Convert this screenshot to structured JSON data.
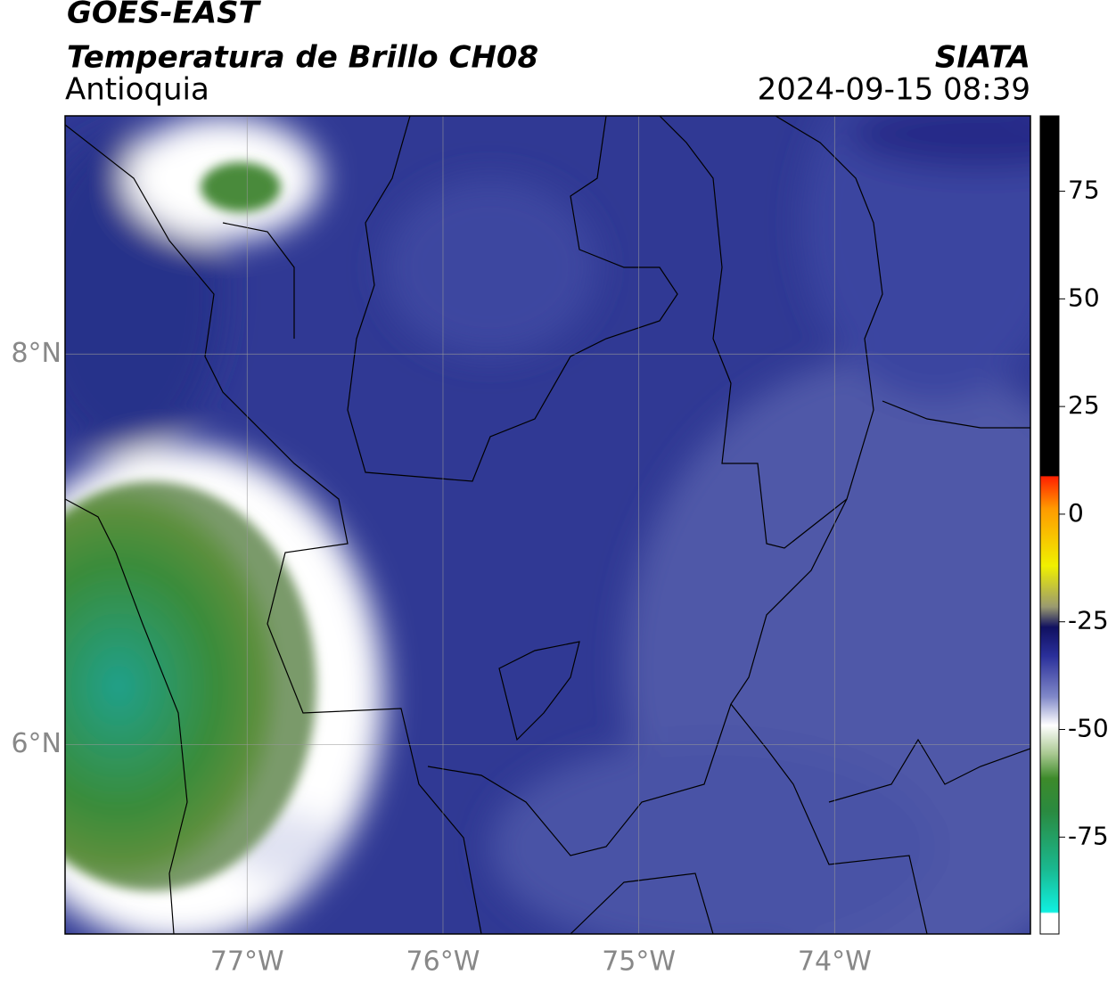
{
  "header": {
    "satellite": "GOES-EAST",
    "product": "Temperatura de Brillo CH08",
    "region": "Antioquia",
    "source": "SIATA",
    "timestamp": "2024-09-15 08:39"
  },
  "map": {
    "xlim": [
      -77.93,
      -73.0
    ],
    "ylim": [
      5.03,
      9.22
    ],
    "xticks": [
      {
        "value": -77,
        "label": "77°W"
      },
      {
        "value": -76,
        "label": "76°W"
      },
      {
        "value": -75,
        "label": "75°W"
      },
      {
        "value": -74,
        "label": "74°W"
      }
    ],
    "yticks": [
      {
        "value": 6,
        "label": "6°N"
      },
      {
        "value": 8,
        "label": "8°N"
      }
    ],
    "grid": true
  },
  "colorbar": {
    "lim": [
      -97.5,
      92.5
    ],
    "ticks": [
      -75,
      -50,
      -25,
      0,
      25,
      50,
      75
    ]
  }
}
